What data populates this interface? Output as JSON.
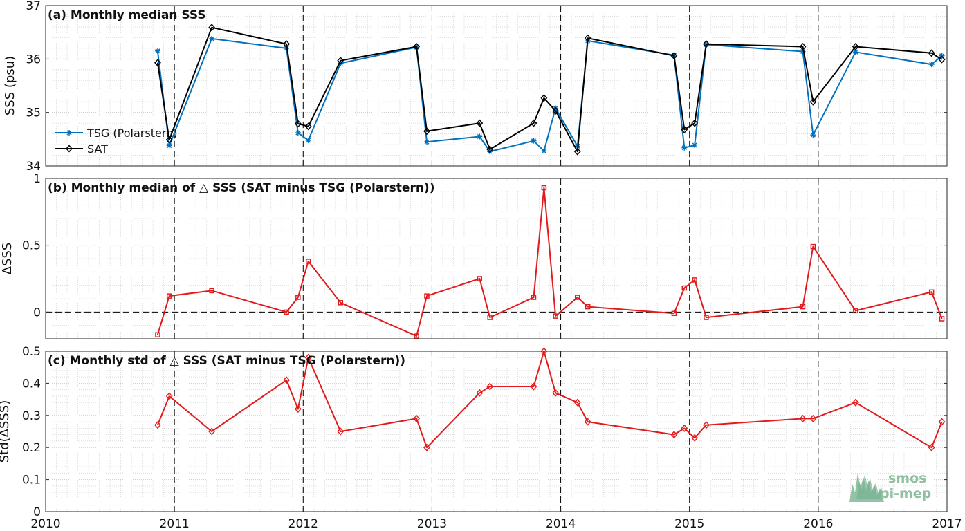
{
  "logo": {
    "line1": "smos",
    "line2": "pi-mep"
  },
  "chart_data": [
    {
      "type": "line",
      "title": "(a) Monthly median SSS",
      "ylabel": "SSS (psu)",
      "xlim": [
        2010,
        2017
      ],
      "ylim": [
        34,
        37
      ],
      "yticks": [
        34,
        35,
        36,
        37
      ],
      "xticks": [
        2010,
        2011,
        2012,
        2013,
        2014,
        2015,
        2016,
        2017
      ],
      "xtick_labels_shown": false,
      "grid": true,
      "dashed_vlines": [
        2011,
        2012,
        2013,
        2014,
        2015,
        2016
      ],
      "legend": {
        "position": "left-middle",
        "entries": [
          "TSG (Polarstern)",
          "SAT"
        ]
      },
      "series": [
        {
          "name": "TSG (Polarstern)",
          "color": "#0072bd",
          "marker": "asterisk",
          "x": [
            2010.87,
            2010.96,
            2011.29,
            2011.87,
            2011.96,
            2012.04,
            2012.29,
            2012.88,
            2012.96,
            2013.37,
            2013.45,
            2013.79,
            2013.87,
            2013.96,
            2014.13,
            2014.21,
            2014.88,
            2014.96,
            2015.04,
            2015.13,
            2015.88,
            2015.96,
            2016.29,
            2016.88,
            2016.96
          ],
          "values": [
            36.15,
            34.38,
            36.38,
            36.2,
            34.62,
            34.48,
            35.92,
            36.22,
            34.45,
            34.55,
            34.27,
            34.47,
            34.28,
            35.08,
            34.37,
            36.34,
            36.07,
            34.34,
            34.39,
            36.27,
            36.14,
            34.58,
            36.13,
            35.9,
            36.06
          ]
        },
        {
          "name": "SAT",
          "color": "#000000",
          "marker": "diamond",
          "x": [
            2010.87,
            2010.96,
            2011.29,
            2011.87,
            2011.96,
            2012.04,
            2012.29,
            2012.88,
            2012.96,
            2013.37,
            2013.45,
            2013.79,
            2013.87,
            2013.96,
            2014.13,
            2014.21,
            2014.88,
            2014.96,
            2015.04,
            2015.13,
            2015.88,
            2015.96,
            2016.29,
            2016.88,
            2016.96
          ],
          "values": [
            35.93,
            34.49,
            36.59,
            36.28,
            34.79,
            34.74,
            35.97,
            36.23,
            34.65,
            34.8,
            34.31,
            34.8,
            35.27,
            35.03,
            34.27,
            36.39,
            36.06,
            34.68,
            34.8,
            36.28,
            36.23,
            35.2,
            36.23,
            36.11,
            35.99
          ]
        }
      ]
    },
    {
      "type": "line",
      "title": "(b) Monthly median of △ SSS (SAT minus TSG (Polarstern))",
      "ylabel": "ΔSSS",
      "xlim": [
        2010,
        2017
      ],
      "ylim": [
        -0.2,
        1
      ],
      "yticks": [
        0,
        0.5,
        1
      ],
      "ytick_labels": [
        "0",
        "0.5",
        "1"
      ],
      "xticks": [
        2010,
        2011,
        2012,
        2013,
        2014,
        2015,
        2016,
        2017
      ],
      "xtick_labels_shown": false,
      "grid": true,
      "dashed_vlines": [
        2011,
        2012,
        2013,
        2014,
        2015,
        2016
      ],
      "dashed_hline": 0,
      "series": [
        {
          "color": "#e31a1c",
          "marker": "square",
          "x": [
            2010.87,
            2010.96,
            2011.29,
            2011.87,
            2011.96,
            2012.04,
            2012.29,
            2012.88,
            2012.96,
            2013.37,
            2013.45,
            2013.79,
            2013.87,
            2013.96,
            2014.13,
            2014.21,
            2014.88,
            2014.96,
            2015.04,
            2015.13,
            2015.88,
            2015.96,
            2016.29,
            2016.88,
            2016.96
          ],
          "values": [
            -0.17,
            0.12,
            0.16,
            0.0,
            0.11,
            0.38,
            0.07,
            -0.18,
            0.12,
            0.25,
            -0.04,
            0.11,
            0.93,
            -0.03,
            0.11,
            0.04,
            -0.01,
            0.18,
            0.24,
            -0.04,
            0.04,
            0.49,
            0.01,
            0.15,
            -0.05
          ]
        }
      ]
    },
    {
      "type": "line",
      "title": "(c) Monthly std of △ SSS (SAT minus TSG (Polarstern))",
      "ylabel": "Std(ΔSSS)",
      "xlim": [
        2010,
        2017
      ],
      "ylim": [
        0,
        0.5
      ],
      "yticks": [
        0,
        0.1,
        0.2,
        0.3,
        0.4,
        0.5
      ],
      "ytick_labels": [
        "0",
        "0.1",
        "0.2",
        "0.3",
        "0.4",
        "0.5"
      ],
      "xticks": [
        2010,
        2011,
        2012,
        2013,
        2014,
        2015,
        2016,
        2017
      ],
      "xtick_labels": [
        "2010",
        "2011",
        "2012",
        "2013",
        "2014",
        "2015",
        "2016",
        "2017"
      ],
      "grid": true,
      "dashed_vlines": [
        2011,
        2012,
        2013,
        2014,
        2015,
        2016
      ],
      "series": [
        {
          "color": "#e31a1c",
          "marker": "diamond",
          "x": [
            2010.87,
            2010.96,
            2011.29,
            2011.87,
            2011.96,
            2012.04,
            2012.29,
            2012.88,
            2012.96,
            2013.37,
            2013.45,
            2013.79,
            2013.87,
            2013.96,
            2014.13,
            2014.21,
            2014.88,
            2014.96,
            2015.04,
            2015.13,
            2015.88,
            2015.96,
            2016.29,
            2016.88,
            2016.96
          ],
          "values": [
            0.27,
            0.36,
            0.25,
            0.41,
            0.32,
            0.48,
            0.25,
            0.29,
            0.2,
            0.37,
            0.39,
            0.39,
            0.5,
            0.37,
            0.34,
            0.28,
            0.24,
            0.26,
            0.23,
            0.27,
            0.29,
            0.29,
            0.34,
            0.2,
            0.28
          ]
        }
      ]
    }
  ]
}
